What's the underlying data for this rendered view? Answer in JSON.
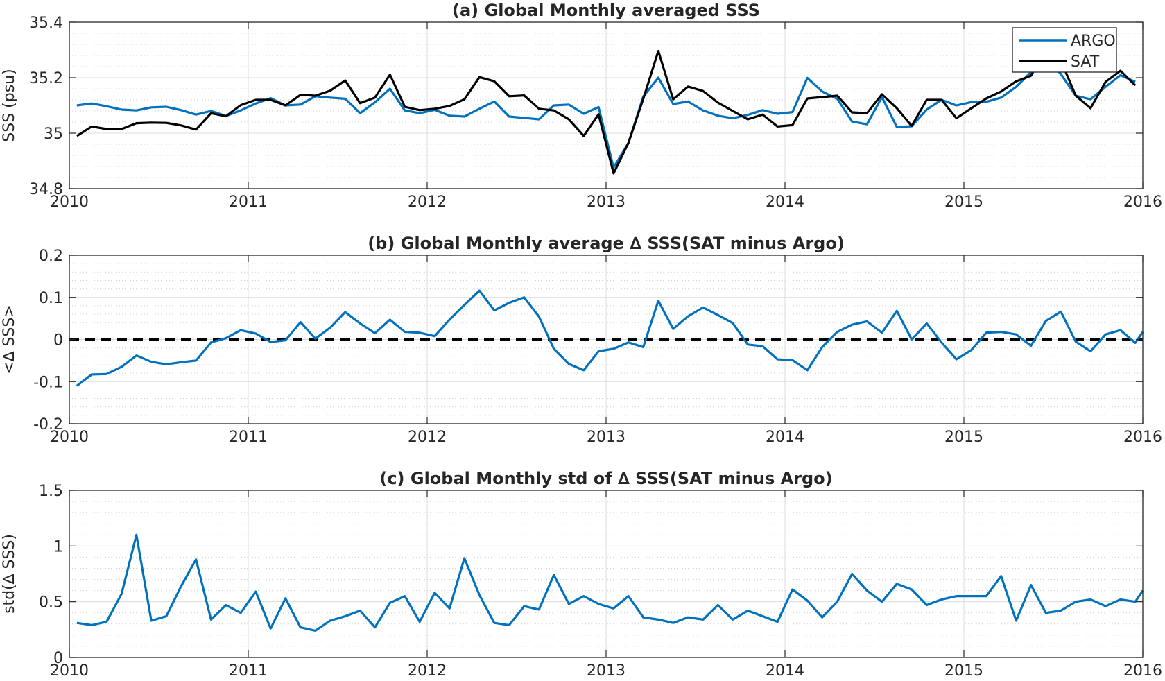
{
  "chart_data": [
    {
      "type": "line",
      "title": "(a) Global Monthly averaged SSS",
      "xlabel": "",
      "ylabel": "SSS (psu)",
      "xlim": [
        2010,
        2016
      ],
      "ylim": [
        34.8,
        35.4
      ],
      "xticks": [
        2010,
        2011,
        2012,
        2013,
        2014,
        2015,
        2016
      ],
      "xtick_labels": [
        "2010",
        "2011",
        "2012",
        "2013",
        "2014",
        "2015",
        "2016"
      ],
      "yticks": [
        34.8,
        35,
        35.2,
        35.4
      ],
      "ytick_labels": [
        "34.8",
        "35",
        "35.2",
        "35.4"
      ],
      "grid": true,
      "legend_position": "top-right",
      "series": [
        {
          "name": "ARGO",
          "color": "#0072BD",
          "x": [
            2010.042,
            2010.125,
            2010.208,
            2010.292,
            2010.375,
            2010.458,
            2010.542,
            2010.625,
            2010.708,
            2010.792,
            2010.875,
            2010.958,
            2011.042,
            2011.125,
            2011.208,
            2011.292,
            2011.375,
            2011.458,
            2011.542,
            2011.625,
            2011.708,
            2011.792,
            2011.875,
            2011.958,
            2012.042,
            2012.125,
            2012.208,
            2012.292,
            2012.375,
            2012.458,
            2012.542,
            2012.625,
            2012.708,
            2012.792,
            2012.875,
            2012.958,
            2013.042,
            2013.125,
            2013.208,
            2013.292,
            2013.375,
            2013.458,
            2013.542,
            2013.625,
            2013.708,
            2013.792,
            2013.875,
            2013.958,
            2014.042,
            2014.125,
            2014.208,
            2014.292,
            2014.375,
            2014.458,
            2014.542,
            2014.625,
            2014.708,
            2014.792,
            2014.875,
            2014.958,
            2015.042,
            2015.125,
            2015.208,
            2015.292,
            2015.375,
            2015.458,
            2015.542,
            2015.625,
            2015.708,
            2015.792,
            2015.875,
            2015.958
          ],
          "y": [
            35.1,
            35.107,
            35.097,
            35.085,
            35.082,
            35.093,
            35.095,
            35.083,
            35.067,
            35.08,
            35.062,
            35.082,
            35.107,
            35.126,
            35.1,
            35.103,
            35.133,
            35.128,
            35.124,
            35.072,
            35.111,
            35.16,
            35.082,
            35.072,
            35.084,
            35.063,
            35.06,
            35.088,
            35.114,
            35.06,
            35.055,
            35.05,
            35.1,
            35.103,
            35.07,
            35.094,
            34.876,
            34.965,
            35.132,
            35.2,
            35.105,
            35.114,
            35.082,
            35.063,
            35.054,
            35.066,
            35.083,
            35.07,
            35.076,
            35.199,
            35.15,
            35.124,
            35.042,
            35.032,
            35.13,
            35.022,
            35.025,
            35.085,
            35.12,
            35.1,
            35.112,
            35.113,
            35.128,
            35.167,
            35.22,
            35.268,
            35.213,
            35.135,
            35.122,
            35.167,
            35.209,
            35.185
          ]
        },
        {
          "name": "SAT",
          "color": "#000000",
          "x": [
            2010.042,
            2010.125,
            2010.208,
            2010.292,
            2010.375,
            2010.458,
            2010.542,
            2010.625,
            2010.708,
            2010.792,
            2010.875,
            2010.958,
            2011.042,
            2011.125,
            2011.208,
            2011.292,
            2011.375,
            2011.458,
            2011.542,
            2011.625,
            2011.708,
            2011.792,
            2011.875,
            2011.958,
            2012.042,
            2012.125,
            2012.208,
            2012.292,
            2012.375,
            2012.458,
            2012.542,
            2012.625,
            2012.708,
            2012.792,
            2012.875,
            2012.958,
            2013.042,
            2013.125,
            2013.208,
            2013.292,
            2013.375,
            2013.458,
            2013.542,
            2013.625,
            2013.708,
            2013.792,
            2013.875,
            2013.958,
            2014.042,
            2014.125,
            2014.208,
            2014.292,
            2014.375,
            2014.458,
            2014.542,
            2014.625,
            2014.708,
            2014.792,
            2014.875,
            2014.958,
            2015.042,
            2015.125,
            2015.208,
            2015.292,
            2015.375,
            2015.458,
            2015.542,
            2015.625,
            2015.708,
            2015.792,
            2015.875,
            2015.958
          ],
          "y": [
            34.99,
            35.024,
            35.015,
            35.015,
            35.036,
            35.038,
            35.037,
            35.028,
            35.013,
            35.072,
            35.061,
            35.101,
            35.12,
            35.12,
            35.1,
            35.138,
            35.135,
            35.153,
            35.19,
            35.108,
            35.128,
            35.211,
            35.095,
            35.083,
            35.088,
            35.098,
            35.122,
            35.202,
            35.187,
            35.133,
            35.136,
            35.088,
            35.082,
            35.05,
            34.99,
            35.068,
            34.855,
            34.965,
            35.124,
            35.296,
            35.122,
            35.168,
            35.152,
            35.11,
            35.08,
            35.05,
            35.067,
            35.024,
            35.029,
            35.125,
            35.13,
            35.135,
            35.075,
            35.072,
            35.14,
            35.09,
            35.026,
            35.12,
            35.12,
            35.054,
            35.09,
            35.125,
            35.15,
            35.187,
            35.207,
            35.302,
            35.262,
            35.135,
            35.09,
            35.185,
            35.225,
            35.172
          ]
        }
      ]
    },
    {
      "type": "line",
      "title": "(b) Global Monthly average ∆ SSS(SAT minus Argo)",
      "xlabel": "",
      "ylabel": "<∆ SSS>",
      "xlim": [
        2010,
        2016
      ],
      "ylim": [
        -0.2,
        0.2
      ],
      "xticks": [
        2010,
        2011,
        2012,
        2013,
        2014,
        2015,
        2016
      ],
      "xtick_labels": [
        "2010",
        "2011",
        "2012",
        "2013",
        "2014",
        "2015",
        "2016"
      ],
      "yticks": [
        -0.2,
        -0.1,
        0,
        0.1,
        0.2
      ],
      "ytick_labels": [
        "-0.2",
        "-0.1",
        "0",
        "0.1",
        "0.2"
      ],
      "grid": true,
      "reference_line": {
        "y": 0,
        "style": "dashed",
        "color": "#000000"
      },
      "series": [
        {
          "color": "#0072BD",
          "x": [
            2010.042,
            2010.125,
            2010.208,
            2010.292,
            2010.375,
            2010.458,
            2010.542,
            2010.625,
            2010.708,
            2010.792,
            2010.875,
            2010.958,
            2011.042,
            2011.125,
            2011.208,
            2011.292,
            2011.375,
            2011.458,
            2011.542,
            2011.625,
            2011.708,
            2011.792,
            2011.875,
            2011.958,
            2012.042,
            2012.125,
            2012.208,
            2012.292,
            2012.375,
            2012.458,
            2012.542,
            2012.625,
            2012.708,
            2012.792,
            2012.875,
            2012.958,
            2013.042,
            2013.125,
            2013.208,
            2013.292,
            2013.375,
            2013.458,
            2013.542,
            2013.625,
            2013.708,
            2013.792,
            2013.875,
            2013.958,
            2014.042,
            2014.125,
            2014.208,
            2014.292,
            2014.375,
            2014.458,
            2014.542,
            2014.625,
            2014.708,
            2014.792,
            2014.875,
            2014.958,
            2015.042,
            2015.125,
            2015.208,
            2015.292,
            2015.375,
            2015.458,
            2015.542,
            2015.625,
            2015.708,
            2015.792,
            2015.875,
            2015.958,
            2016.0
          ],
          "y": [
            -0.11,
            -0.083,
            -0.082,
            -0.065,
            -0.038,
            -0.053,
            -0.059,
            -0.054,
            -0.05,
            -0.007,
            0.003,
            0.022,
            0.014,
            -0.006,
            -0.002,
            0.041,
            0.002,
            0.028,
            0.065,
            0.038,
            0.015,
            0.047,
            0.018,
            0.016,
            0.008,
            0.047,
            0.082,
            0.116,
            0.069,
            0.087,
            0.1,
            0.054,
            -0.022,
            -0.058,
            -0.073,
            -0.028,
            -0.022,
            -0.007,
            -0.018,
            0.092,
            0.025,
            0.055,
            0.076,
            0.058,
            0.039,
            -0.012,
            -0.016,
            -0.047,
            -0.049,
            -0.073,
            -0.018,
            0.018,
            0.035,
            0.043,
            0.016,
            0.068,
            0.0,
            0.038,
            -0.007,
            -0.047,
            -0.025,
            0.016,
            0.018,
            0.012,
            -0.015,
            0.044,
            0.066,
            -0.005,
            -0.028,
            0.012,
            0.022,
            -0.008,
            0.018
          ]
        }
      ]
    },
    {
      "type": "line",
      "title": "(c) Global Monthly std of ∆ SSS(SAT minus Argo)",
      "xlabel": "",
      "ylabel": "std(∆ SSS)",
      "xlim": [
        2010,
        2016
      ],
      "ylim": [
        0,
        1.5
      ],
      "xticks": [
        2010,
        2011,
        2012,
        2013,
        2014,
        2015,
        2016
      ],
      "xtick_labels": [
        "2010",
        "2011",
        "2012",
        "2013",
        "2014",
        "2015",
        "2016"
      ],
      "yticks": [
        0,
        0.5,
        1,
        1.5
      ],
      "ytick_labels": [
        "0",
        "0.5",
        "1",
        "1.5"
      ],
      "grid": true,
      "series": [
        {
          "color": "#0072BD",
          "x": [
            2010.042,
            2010.125,
            2010.208,
            2010.292,
            2010.375,
            2010.458,
            2010.542,
            2010.625,
            2010.708,
            2010.792,
            2010.875,
            2010.958,
            2011.042,
            2011.125,
            2011.208,
            2011.292,
            2011.375,
            2011.458,
            2011.542,
            2011.625,
            2011.708,
            2011.792,
            2011.875,
            2011.958,
            2012.042,
            2012.125,
            2012.208,
            2012.292,
            2012.375,
            2012.458,
            2012.542,
            2012.625,
            2012.708,
            2012.792,
            2012.875,
            2012.958,
            2013.042,
            2013.125,
            2013.208,
            2013.292,
            2013.375,
            2013.458,
            2013.542,
            2013.625,
            2013.708,
            2013.792,
            2013.875,
            2013.958,
            2014.042,
            2014.125,
            2014.208,
            2014.292,
            2014.375,
            2014.458,
            2014.542,
            2014.625,
            2014.708,
            2014.792,
            2014.875,
            2014.958,
            2015.042,
            2015.125,
            2015.208,
            2015.292,
            2015.375,
            2015.458,
            2015.542,
            2015.625,
            2015.708,
            2015.792,
            2015.875,
            2015.958,
            2016.0
          ],
          "y": [
            0.31,
            0.29,
            0.32,
            0.57,
            1.1,
            0.33,
            0.37,
            0.64,
            0.88,
            0.34,
            0.47,
            0.4,
            0.59,
            0.26,
            0.53,
            0.27,
            0.24,
            0.33,
            0.37,
            0.42,
            0.27,
            0.49,
            0.55,
            0.32,
            0.58,
            0.44,
            0.89,
            0.56,
            0.31,
            0.29,
            0.46,
            0.43,
            0.74,
            0.48,
            0.55,
            0.48,
            0.44,
            0.55,
            0.36,
            0.34,
            0.31,
            0.36,
            0.34,
            0.47,
            0.34,
            0.42,
            0.37,
            0.32,
            0.61,
            0.51,
            0.36,
            0.5,
            0.75,
            0.6,
            0.5,
            0.66,
            0.61,
            0.47,
            0.52,
            0.55,
            0.55,
            0.55,
            0.73,
            0.33,
            0.65,
            0.4,
            0.42,
            0.5,
            0.52,
            0.46,
            0.52,
            0.5,
            0.6
          ]
        }
      ]
    }
  ]
}
